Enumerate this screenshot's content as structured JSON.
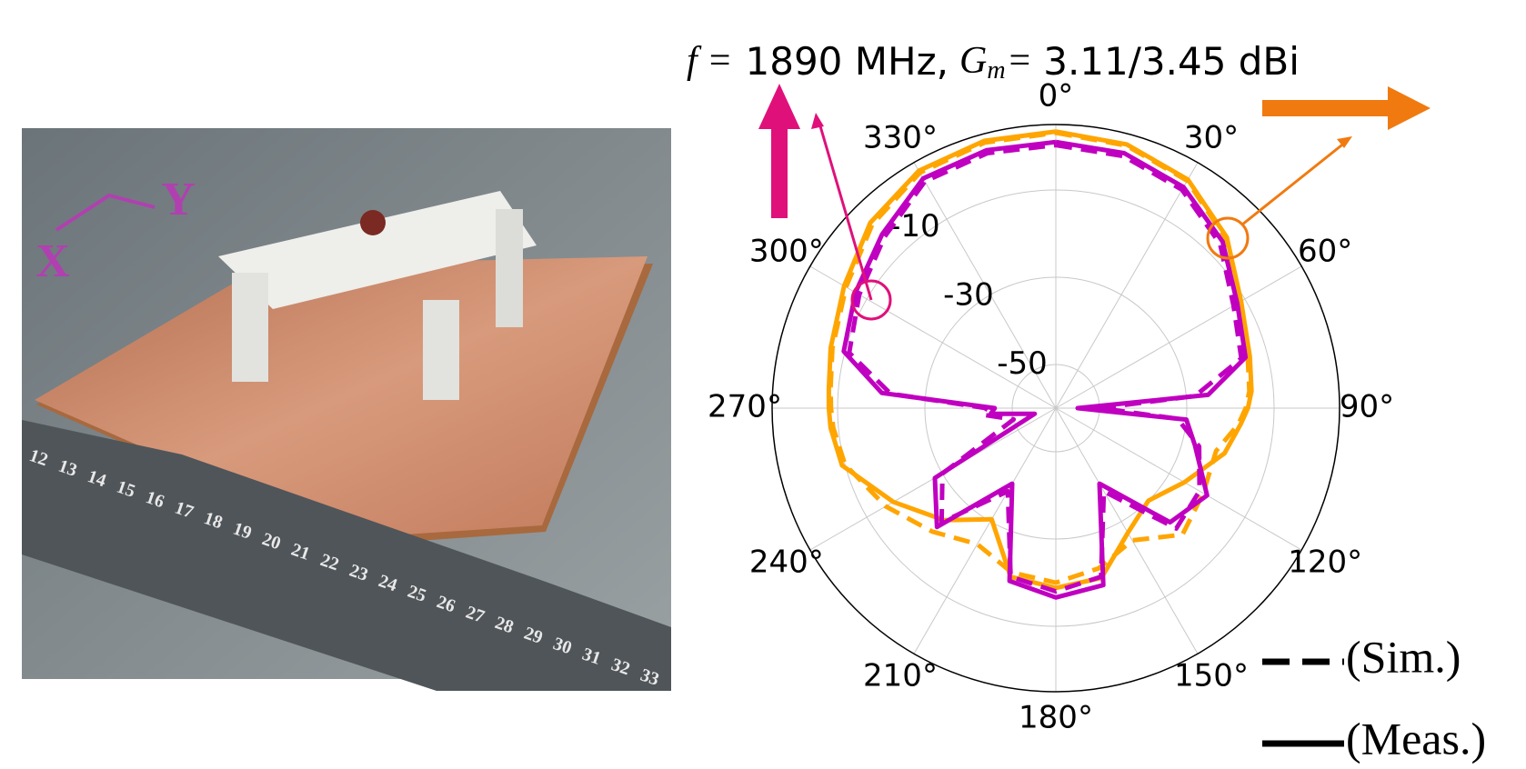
{
  "photo": {
    "axis_labels": [
      "X",
      "Y"
    ],
    "ruler_labels": [
      "12",
      "13",
      "14",
      "15",
      "16",
      "17",
      "18",
      "19",
      "20",
      "21",
      "22",
      "23",
      "24",
      "25",
      "26",
      "27",
      "28",
      "29",
      "30",
      "31",
      "32",
      "33"
    ]
  },
  "chart_data": {
    "type": "polar",
    "title": {
      "f_label": "f =",
      "frequency": "1890 MHz,",
      "gain_symbol": "G",
      "gain_subscript": "m",
      "equals": "=",
      "gain": "3.11/3.45 dBi"
    },
    "theta_direction": "clockwise",
    "theta_zero": "top",
    "x": [
      0,
      15,
      30,
      45,
      60,
      75,
      85,
      90,
      95,
      105,
      120,
      135,
      150,
      165,
      180,
      195,
      210,
      225,
      240,
      255,
      265,
      270,
      275,
      285,
      300,
      315,
      330,
      345,
      360
    ],
    "xticks": [
      {
        "value": 0,
        "label": "0°"
      },
      {
        "value": 30,
        "label": "30°"
      },
      {
        "value": 60,
        "label": "60°"
      },
      {
        "value": 90,
        "label": "90°"
      },
      {
        "value": 120,
        "label": "120°"
      },
      {
        "value": 150,
        "label": "150°"
      },
      {
        "value": 180,
        "label": "180°"
      },
      {
        "value": 210,
        "label": "210°"
      },
      {
        "value": 240,
        "label": "240°"
      },
      {
        "value": 270,
        "label": "270°"
      },
      {
        "value": 300,
        "label": "300°"
      },
      {
        "value": 330,
        "label": "330°"
      }
    ],
    "ylim": [
      -60,
      5
    ],
    "yticks": [
      -50,
      -30,
      -10
    ],
    "grid": true,
    "series": [
      {
        "color": "#ffa500",
        "style": "solid",
        "values": [
          3.4,
          2.6,
          0.5,
          -4.6,
          -11,
          -14,
          -15,
          -16,
          -17.5,
          -20,
          -26,
          -30,
          -27,
          -19.7,
          -18.8,
          -20,
          -30.6,
          -23.7,
          -17,
          -9.3,
          -8.2,
          -8,
          -7.8,
          -6.6,
          -4,
          0.1,
          2.8,
          3.4,
          3.4
        ]
      },
      {
        "color": "#ffa500",
        "style": "dashed",
        "values": [
          3.1,
          2.3,
          0.2,
          -5,
          -11.5,
          -14.5,
          -15.5,
          -16.5,
          -18,
          -22,
          -21,
          -19,
          -25,
          -22,
          -20,
          -21,
          -24,
          -20,
          -15,
          -10,
          -8.8,
          -8.5,
          -8.2,
          -7,
          -4.5,
          -0.5,
          2.3,
          3.0,
          3.1
        ]
      },
      {
        "color": "#c000c0",
        "style": "solid",
        "values": [
          1.0,
          0.5,
          -1.5,
          -6,
          -12,
          -15,
          -25,
          -55,
          -30,
          -27,
          -20,
          -23,
          -40,
          -18,
          -16.6,
          -19,
          -40,
          -21.5,
          -28,
          -55,
          -45,
          -46,
          -20,
          -9.7,
          -7,
          -3.7,
          0.8,
          1.2,
          1.0
        ]
      },
      {
        "color": "#c000c0",
        "style": "dashed",
        "values": [
          0.3,
          -0.2,
          -2.2,
          -6.8,
          -13,
          -16,
          -28,
          -50,
          -32,
          -26,
          -22,
          -21,
          -38,
          -20,
          -18,
          -20,
          -38,
          -23,
          -30,
          -50,
          -43,
          -44,
          -22,
          -11,
          -8,
          -4.5,
          0,
          0.5,
          0.3
        ]
      }
    ],
    "legend": [
      {
        "label": "(Sim.)",
        "style": "dashed"
      },
      {
        "label": "(Meas.)",
        "style": "solid"
      }
    ]
  }
}
